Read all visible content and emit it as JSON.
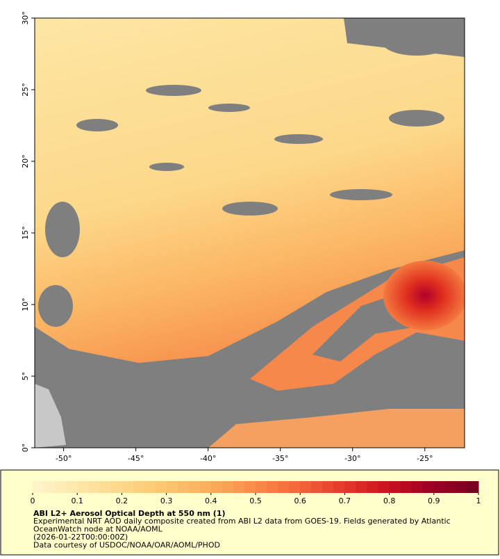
{
  "map": {
    "xlim": [
      -52,
      -22.25
    ],
    "ylim": [
      0,
      30
    ],
    "xticks": [
      {
        "value": -50,
        "label": "-50°"
      },
      {
        "value": -45,
        "label": "-45°"
      },
      {
        "value": -40,
        "label": "-40°"
      },
      {
        "value": -35,
        "label": "-35°"
      },
      {
        "value": -30,
        "label": "-30°"
      },
      {
        "value": -25,
        "label": "-25°"
      }
    ],
    "yticks": [
      {
        "value": 0,
        "label": "0°"
      },
      {
        "value": 5,
        "label": "5°"
      },
      {
        "value": 10,
        "label": "10°"
      },
      {
        "value": 15,
        "label": "15°"
      },
      {
        "value": 20,
        "label": "20°"
      },
      {
        "value": 25,
        "label": "25°"
      },
      {
        "value": 30,
        "label": "30°"
      }
    ]
  },
  "colorbar": {
    "range": [
      0,
      1
    ],
    "ticks": [
      0,
      0.1,
      0.2,
      0.3,
      0.4,
      0.5,
      0.6,
      0.7,
      0.8,
      0.9,
      1
    ],
    "colors": [
      "#fff6cc",
      "#fee7a8",
      "#fdd789",
      "#fcc56e",
      "#fbad5a",
      "#f88c48",
      "#f2653a",
      "#e4382a",
      "#c8101f",
      "#9a0024",
      "#730021"
    ]
  },
  "legend": {
    "title": "ABI L2+ Aerosol Optical Depth at 550 nm (1)",
    "lines": [
      "Experimental NRT AOD daily composite created from ABI L2 data from GOES-19. Fields generated by Atlantic",
      "OceanWatch node at NOAA/AOML",
      "(2026-01-22T00:00:00Z)",
      "Data courtesy of USDOC/NOAA/OAR/AOML/PHOD"
    ]
  }
}
